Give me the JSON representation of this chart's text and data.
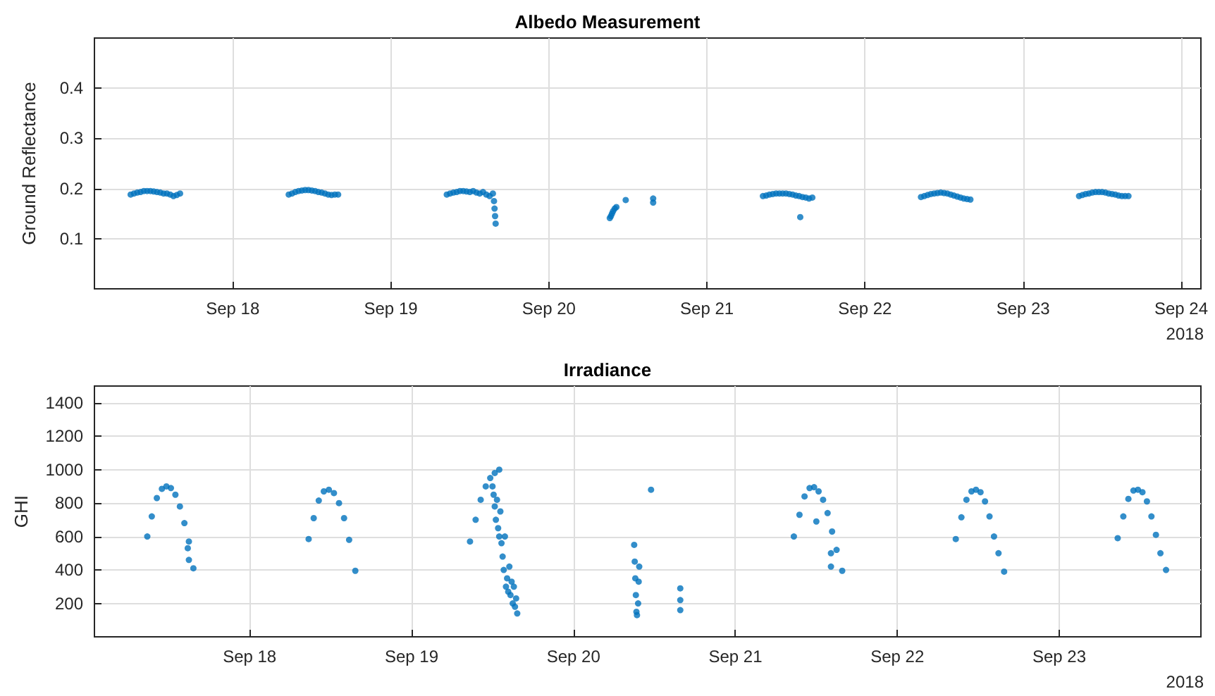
{
  "chart_data": [
    {
      "type": "scatter",
      "title": "Albedo Measurement",
      "ylabel": "Ground Reflectance",
      "color": "#0072bd",
      "marker": "circle",
      "grid": true,
      "annotations": [
        "2018"
      ],
      "xlim": [
        "2018-09-17T03:00",
        "2018-09-24T03:00"
      ],
      "ylim": [
        0,
        0.5
      ],
      "yticks": [
        0.1,
        0.2,
        0.3,
        0.4
      ],
      "xticks": [
        {
          "value": "2018-09-18",
          "label": "Sep 18"
        },
        {
          "value": "2018-09-19",
          "label": "Sep 19"
        },
        {
          "value": "2018-09-20",
          "label": "Sep 20"
        },
        {
          "value": "2018-09-21",
          "label": "Sep 21"
        },
        {
          "value": "2018-09-22",
          "label": "Sep 22"
        },
        {
          "value": "2018-09-23",
          "label": "Sep 23"
        },
        {
          "value": "2018-09-24",
          "label": "Sep 24"
        }
      ],
      "x": [
        "2018-09-17T08:30",
        "2018-09-17T09:00",
        "2018-09-17T09:30",
        "2018-09-17T10:00",
        "2018-09-17T10:30",
        "2018-09-17T11:00",
        "2018-09-17T11:30",
        "2018-09-17T12:00",
        "2018-09-17T12:30",
        "2018-09-17T13:00",
        "2018-09-17T13:30",
        "2018-09-17T14:00",
        "2018-09-17T14:30",
        "2018-09-17T15:00",
        "2018-09-17T15:30",
        "2018-09-17T16:00",
        "2018-09-18T08:30",
        "2018-09-18T09:00",
        "2018-09-18T09:30",
        "2018-09-18T10:00",
        "2018-09-18T10:30",
        "2018-09-18T11:00",
        "2018-09-18T11:30",
        "2018-09-18T12:00",
        "2018-09-18T12:30",
        "2018-09-18T13:00",
        "2018-09-18T13:30",
        "2018-09-18T14:00",
        "2018-09-18T14:30",
        "2018-09-18T15:00",
        "2018-09-18T15:30",
        "2018-09-18T16:00",
        "2018-09-19T08:30",
        "2018-09-19T09:00",
        "2018-09-19T09:30",
        "2018-09-19T10:00",
        "2018-09-19T10:30",
        "2018-09-19T11:00",
        "2018-09-19T11:30",
        "2018-09-19T12:00",
        "2018-09-19T12:30",
        "2018-09-19T13:00",
        "2018-09-19T13:30",
        "2018-09-19T14:00",
        "2018-09-19T14:30",
        "2018-09-19T15:00",
        "2018-09-19T15:30",
        "2018-09-19T15:40",
        "2018-09-19T15:45",
        "2018-09-19T15:50",
        "2018-09-19T15:55",
        "2018-09-20T09:15",
        "2018-09-20T09:25",
        "2018-09-20T09:35",
        "2018-09-20T09:45",
        "2018-09-20T10:00",
        "2018-09-20T10:15",
        "2018-09-20T11:40",
        "2018-09-20T15:50",
        "2018-09-20T15:50",
        "2018-09-21T08:30",
        "2018-09-21T09:00",
        "2018-09-21T09:30",
        "2018-09-21T10:00",
        "2018-09-21T10:30",
        "2018-09-21T11:00",
        "2018-09-21T11:30",
        "2018-09-21T12:00",
        "2018-09-21T12:30",
        "2018-09-21T13:00",
        "2018-09-21T13:30",
        "2018-09-21T14:00",
        "2018-09-21T14:10",
        "2018-09-21T14:30",
        "2018-09-21T15:00",
        "2018-09-21T15:30",
        "2018-09-21T16:00",
        "2018-09-22T08:30",
        "2018-09-22T09:00",
        "2018-09-22T09:30",
        "2018-09-22T10:00",
        "2018-09-22T10:30",
        "2018-09-22T11:00",
        "2018-09-22T11:30",
        "2018-09-22T12:00",
        "2018-09-22T12:30",
        "2018-09-22T13:00",
        "2018-09-22T13:30",
        "2018-09-22T14:00",
        "2018-09-22T14:30",
        "2018-09-22T15:00",
        "2018-09-22T15:30",
        "2018-09-22T16:00",
        "2018-09-23T08:30",
        "2018-09-23T09:00",
        "2018-09-23T09:30",
        "2018-09-23T10:00",
        "2018-09-23T10:30",
        "2018-09-23T11:00",
        "2018-09-23T11:30",
        "2018-09-23T12:00",
        "2018-09-23T12:30",
        "2018-09-23T13:00",
        "2018-09-23T13:30",
        "2018-09-23T14:00",
        "2018-09-23T14:30",
        "2018-09-23T15:00",
        "2018-09-23T15:30",
        "2018-09-23T16:00"
      ],
      "values": [
        0.188,
        0.19,
        0.192,
        0.193,
        0.195,
        0.195,
        0.195,
        0.194,
        0.193,
        0.192,
        0.19,
        0.19,
        0.188,
        0.185,
        0.187,
        0.19,
        0.188,
        0.19,
        0.193,
        0.195,
        0.196,
        0.197,
        0.197,
        0.196,
        0.195,
        0.193,
        0.192,
        0.19,
        0.188,
        0.187,
        0.188,
        0.188,
        0.188,
        0.19,
        0.192,
        0.193,
        0.195,
        0.195,
        0.194,
        0.193,
        0.195,
        0.192,
        0.19,
        0.193,
        0.188,
        0.185,
        0.19,
        0.175,
        0.16,
        0.145,
        0.13,
        0.141,
        0.145,
        0.15,
        0.155,
        0.16,
        0.163,
        0.177,
        0.172,
        0.18,
        0.185,
        0.186,
        0.188,
        0.189,
        0.19,
        0.19,
        0.19,
        0.19,
        0.189,
        0.188,
        0.186,
        0.185,
        0.143,
        0.183,
        0.182,
        0.18,
        0.182,
        0.183,
        0.185,
        0.187,
        0.189,
        0.19,
        0.191,
        0.192,
        0.191,
        0.19,
        0.188,
        0.186,
        0.184,
        0.182,
        0.18,
        0.179,
        0.178,
        0.185,
        0.187,
        0.189,
        0.19,
        0.192,
        0.193,
        0.193,
        0.193,
        0.192,
        0.19,
        0.189,
        0.188,
        0.186,
        0.185,
        0.185,
        0.185
      ]
    },
    {
      "type": "scatter",
      "title": "Irradiance",
      "ylabel": "GHI",
      "color": "#0072bd",
      "marker": "circle",
      "grid": true,
      "annotations": [
        "2018"
      ],
      "xlim": [
        "2018-09-17T01:00",
        "2018-09-23T21:00"
      ],
      "ylim": [
        0,
        1500
      ],
      "yticks": [
        200,
        400,
        600,
        800,
        1000,
        1200,
        1400
      ],
      "xticks": [
        {
          "value": "2018-09-18",
          "label": "Sep 18"
        },
        {
          "value": "2018-09-19",
          "label": "Sep 19"
        },
        {
          "value": "2018-09-20",
          "label": "Sep 20"
        },
        {
          "value": "2018-09-21",
          "label": "Sep 21"
        },
        {
          "value": "2018-09-22",
          "label": "Sep 22"
        },
        {
          "value": "2018-09-23",
          "label": "Sep 23"
        }
      ],
      "x": [
        "2018-09-17T08:50",
        "2018-09-17T09:30",
        "2018-09-17T10:15",
        "2018-09-17T11:00",
        "2018-09-17T11:40",
        "2018-09-17T12:20",
        "2018-09-17T13:00",
        "2018-09-17T13:40",
        "2018-09-17T14:20",
        "2018-09-17T15:00",
        "2018-09-17T15:40",
        "2018-09-17T14:50",
        "2018-09-17T15:00",
        "2018-09-18T08:45",
        "2018-09-18T09:30",
        "2018-09-18T10:15",
        "2018-09-18T11:00",
        "2018-09-18T11:45",
        "2018-09-18T12:30",
        "2018-09-18T13:15",
        "2018-09-18T14:00",
        "2018-09-18T14:45",
        "2018-09-18T15:40",
        "2018-09-19T08:40",
        "2018-09-19T09:30",
        "2018-09-19T10:15",
        "2018-09-19T11:00",
        "2018-09-19T11:40",
        "2018-09-19T12:20",
        "2018-09-19T13:00",
        "2018-09-19T12:00",
        "2018-09-19T12:10",
        "2018-09-19T12:20",
        "2018-09-19T12:30",
        "2018-09-19T12:40",
        "2018-09-19T12:50",
        "2018-09-19T13:00",
        "2018-09-19T13:10",
        "2018-09-19T13:20",
        "2018-09-19T13:30",
        "2018-09-19T13:40",
        "2018-09-19T13:50",
        "2018-09-19T14:00",
        "2018-09-19T14:10",
        "2018-09-19T14:20",
        "2018-09-19T14:30",
        "2018-09-19T14:40",
        "2018-09-19T14:50",
        "2018-09-19T15:00",
        "2018-09-19T15:10",
        "2018-09-19T15:20",
        "2018-09-19T15:30",
        "2018-09-19T15:40",
        "2018-09-20T09:00",
        "2018-09-20T09:05",
        "2018-09-20T09:10",
        "2018-09-20T09:15",
        "2018-09-20T09:20",
        "2018-09-20T09:25",
        "2018-09-20T09:35",
        "2018-09-20T09:40",
        "2018-09-20T09:45",
        "2018-09-20T11:30",
        "2018-09-20T15:50",
        "2018-09-20T15:50",
        "2018-09-20T15:50",
        "2018-09-21T08:40",
        "2018-09-21T09:30",
        "2018-09-21T10:15",
        "2018-09-21T11:00",
        "2018-09-21T11:40",
        "2018-09-21T12:20",
        "2018-09-21T13:00",
        "2018-09-21T13:40",
        "2018-09-21T14:20",
        "2018-09-21T15:00",
        "2018-09-21T15:50",
        "2018-09-21T12:00",
        "2018-09-21T14:10",
        "2018-09-21T14:10",
        "2018-09-22T08:40",
        "2018-09-22T09:30",
        "2018-09-22T10:15",
        "2018-09-22T11:00",
        "2018-09-22T11:40",
        "2018-09-22T12:20",
        "2018-09-22T13:00",
        "2018-09-22T13:40",
        "2018-09-22T14:20",
        "2018-09-22T15:00",
        "2018-09-22T15:50",
        "2018-09-23T08:40",
        "2018-09-23T09:30",
        "2018-09-23T10:15",
        "2018-09-23T11:00",
        "2018-09-23T11:40",
        "2018-09-23T12:20",
        "2018-09-23T13:00",
        "2018-09-23T13:40",
        "2018-09-23T14:20",
        "2018-09-23T15:00",
        "2018-09-23T15:50"
      ],
      "values": [
        600,
        720,
        830,
        885,
        900,
        890,
        850,
        780,
        680,
        570,
        410,
        530,
        460,
        585,
        710,
        815,
        870,
        880,
        860,
        800,
        710,
        580,
        395,
        570,
        700,
        820,
        900,
        950,
        980,
        1000,
        900,
        850,
        780,
        700,
        820,
        650,
        600,
        750,
        560,
        480,
        400,
        600,
        300,
        350,
        270,
        420,
        250,
        330,
        200,
        300,
        180,
        230,
        140,
        550,
        450,
        350,
        250,
        150,
        130,
        200,
        330,
        420,
        880,
        160,
        220,
        290,
        600,
        730,
        840,
        890,
        895,
        870,
        820,
        740,
        630,
        520,
        395,
        690,
        500,
        420,
        585,
        715,
        820,
        870,
        880,
        865,
        810,
        720,
        600,
        500,
        390,
        590,
        720,
        825,
        875,
        880,
        865,
        810,
        720,
        610,
        500,
        400
      ]
    }
  ]
}
